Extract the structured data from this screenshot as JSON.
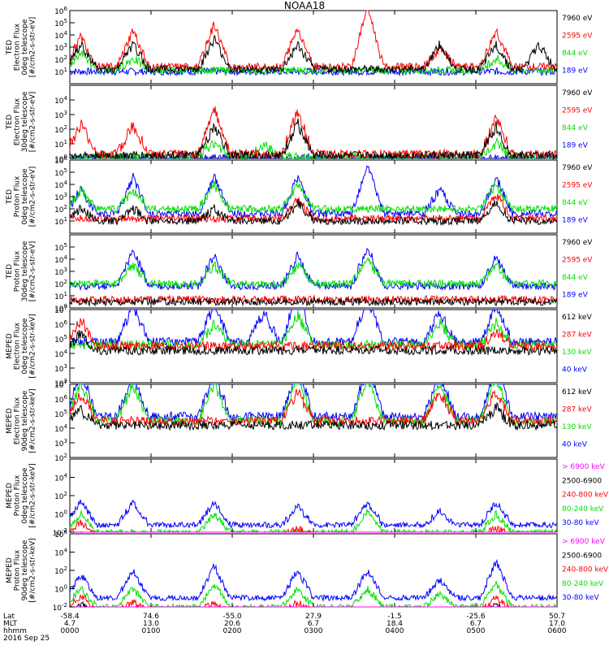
{
  "title": "NOAA18",
  "x_ticks": [
    "0000",
    "0100",
    "0200",
    "0300",
    "0400",
    "0500",
    "0600"
  ],
  "x_axis_rows": [
    {
      "label": "Lat",
      "values": [
        "-58.4",
        "74.6",
        "-55.0",
        "27.9",
        "-1.5",
        "-25.6",
        "50.7"
      ]
    },
    {
      "label": "MLT",
      "values": [
        "4.7",
        "13.0",
        "20.6",
        "6.7",
        "18.4",
        "6.7",
        "17.0"
      ]
    },
    {
      "label": "hhmm",
      "values": [
        "0000",
        "0100",
        "0200",
        "0300",
        "0400",
        "0500",
        "0600"
      ]
    }
  ],
  "date": "2016 Sep 25",
  "colors": {
    "black": "#000000",
    "red": "#ff0000",
    "green": "#00e000",
    "blue": "#0000ff",
    "magenta": "#ff00ff"
  },
  "chart_data": [
    {
      "type": "line",
      "ylabel": [
        "TED",
        "Electron Flux",
        "0deg telescope",
        "[#/cm2-s-str-eV]"
      ],
      "y_tick_exponents": [
        1,
        2,
        3,
        4,
        5,
        6
      ],
      "ylim": [
        1,
        1000000
      ],
      "yscale": "log",
      "series": [
        {
          "name": "7960 eV",
          "color": "black",
          "bursts": [
            [
              5,
              2
            ],
            [
              28,
              2
            ],
            [
              64,
              2.5
            ],
            [
              101,
              2
            ],
            [
              164,
              2
            ],
            [
              189,
              2
            ],
            [
              208,
              2
            ]
          ],
          "base": 1.2
        },
        {
          "name": "2595 eV",
          "color": "red",
          "bursts": [
            [
              5,
              2.5
            ],
            [
              28,
              3
            ],
            [
              64,
              3.5
            ],
            [
              101,
              3.2
            ],
            [
              132,
              5
            ],
            [
              164,
              1.5
            ],
            [
              189,
              3
            ]
          ],
          "base": 1.4
        },
        {
          "name": "844 eV",
          "color": "green",
          "bursts": [
            [
              5,
              1.5
            ],
            [
              28,
              1
            ],
            [
              189,
              1
            ]
          ],
          "base": 1.1
        },
        {
          "name": "189 eV",
          "color": "blue",
          "bursts": [],
          "base": 1.0
        }
      ]
    },
    {
      "type": "line",
      "ylabel": [
        "TED",
        "Electron Flux",
        "30deg telescope",
        "[#/cm2-s-str-eV]"
      ],
      "y_tick_exponents": [
        0,
        1,
        2,
        3,
        4
      ],
      "ylim": [
        1,
        100000
      ],
      "yscale": "log",
      "series": [
        {
          "name": "7960 eV",
          "color": "black",
          "bursts": [
            [
              64,
              2
            ],
            [
              101,
              2.2
            ],
            [
              189,
              2
            ]
          ],
          "base": 0.2
        },
        {
          "name": "2595 eV",
          "color": "red",
          "bursts": [
            [
              5,
              2
            ],
            [
              28,
              2
            ],
            [
              64,
              3.2
            ],
            [
              101,
              3
            ],
            [
              189,
              2.5
            ]
          ],
          "base": 0.3
        },
        {
          "name": "844 eV",
          "color": "green",
          "bursts": [
            [
              64,
              1
            ],
            [
              86,
              0.8
            ],
            [
              189,
              1
            ]
          ],
          "base": 0.1
        },
        {
          "name": "189 eV",
          "color": "blue",
          "bursts": [],
          "base": 0
        }
      ]
    },
    {
      "type": "line",
      "ylabel": [
        "TED",
        "Proton Flux",
        "0deg telescope",
        "[#/cm2-s-str-eV]"
      ],
      "y_tick_exponents": [
        1,
        2,
        3,
        4,
        5,
        6
      ],
      "ylim": [
        1,
        1000000
      ],
      "yscale": "log",
      "series": [
        {
          "name": "7960 eV",
          "color": "black",
          "bursts": [
            [
              5,
              1
            ],
            [
              28,
              1
            ],
            [
              64,
              1
            ],
            [
              101,
              1.5
            ],
            [
              189,
              1.5
            ]
          ],
          "base": 1.0
        },
        {
          "name": "2595 eV",
          "color": "red",
          "bursts": [
            [
              101,
              1.5
            ],
            [
              189,
              2
            ]
          ],
          "base": 1.2
        },
        {
          "name": "844 eV",
          "color": "green",
          "bursts": [
            [
              5,
              1.5
            ],
            [
              28,
              1.5
            ],
            [
              64,
              2
            ],
            [
              101,
              2
            ],
            [
              189,
              2
            ]
          ],
          "base": 2.0
        },
        {
          "name": "189 eV",
          "color": "blue",
          "bursts": [
            [
              5,
              2
            ],
            [
              28,
              3
            ],
            [
              64,
              3
            ],
            [
              101,
              3
            ],
            [
              132,
              4
            ],
            [
              164,
              2
            ],
            [
              189,
              3
            ]
          ],
          "base": 1.6
        }
      ]
    },
    {
      "type": "line",
      "ylabel": [
        "TED",
        "Proton Flux",
        "30deg telescope",
        "[#/cm2-s-str-eV]"
      ],
      "y_tick_exponents": [
        0,
        1,
        2,
        3,
        4,
        5
      ],
      "ylim": [
        1,
        1000000
      ],
      "yscale": "log",
      "series": [
        {
          "name": "7960 eV",
          "color": "black",
          "bursts": [],
          "base": 0.5
        },
        {
          "name": "2595 eV",
          "color": "red",
          "bursts": [],
          "base": 0.7
        },
        {
          "name": "844 eV",
          "color": "green",
          "bursts": [
            [
              28,
              1.5
            ],
            [
              64,
              1.5
            ],
            [
              101,
              1.5
            ],
            [
              132,
              2
            ],
            [
              189,
              1.5
            ]
          ],
          "base": 2.0
        },
        {
          "name": "189 eV",
          "color": "blue",
          "bursts": [
            [
              28,
              3
            ],
            [
              64,
              2.5
            ],
            [
              101,
              2.5
            ],
            [
              132,
              3.2
            ],
            [
              189,
              2.5
            ]
          ],
          "base": 1.8
        }
      ]
    },
    {
      "type": "line",
      "ylabel": [
        "MEPED",
        "Electron Flux",
        "0deg telescope",
        "[#/cm2-s-str-keV]"
      ],
      "y_tick_exponents": [
        2,
        3,
        4,
        5,
        6,
        7
      ],
      "ylim": [
        100,
        10000000
      ],
      "yscale": "log",
      "series": [
        {
          "name": "612 keV",
          "color": "black",
          "bursts": [
            [
              5,
              1.2
            ]
          ],
          "base": 2.2
        },
        {
          "name": "287 keV",
          "color": "red",
          "bursts": [
            [
              5,
              1.8
            ],
            [
              189,
              1
            ]
          ],
          "base": 2.5
        },
        {
          "name": "130 keV",
          "color": "green",
          "bursts": [
            [
              64,
              1.5
            ],
            [
              101,
              2
            ],
            [
              164,
              1.5
            ],
            [
              189,
              1.5
            ]
          ],
          "base": 2.6
        },
        {
          "name": "40 keV",
          "color": "blue",
          "bursts": [
            [
              28,
              2.5
            ],
            [
              64,
              2.5
            ],
            [
              86,
              2
            ],
            [
              101,
              3.5
            ],
            [
              132,
              3
            ],
            [
              164,
              2
            ],
            [
              189,
              2.5
            ]
          ],
          "base": 2.8
        }
      ]
    },
    {
      "type": "line",
      "ylabel": [
        "MEPED",
        "Electron Flux",
        "90deg telescope",
        "[#/cm2-s-str-keV]"
      ],
      "y_tick_exponents": [
        2,
        3,
        4,
        5,
        6,
        7
      ],
      "ylim": [
        100,
        10000000
      ],
      "yscale": "log",
      "series": [
        {
          "name": "612 keV",
          "color": "black",
          "bursts": [
            [
              5,
              1
            ],
            [
              189,
              1.2
            ]
          ],
          "base": 2.2
        },
        {
          "name": "287 keV",
          "color": "red",
          "bursts": [
            [
              5,
              1.8
            ],
            [
              101,
              2
            ],
            [
              164,
              2
            ],
            [
              189,
              2
            ]
          ],
          "base": 2.5
        },
        {
          "name": "130 keV",
          "color": "green",
          "bursts": [
            [
              5,
              2.5
            ],
            [
              28,
              2.5
            ],
            [
              64,
              2.5
            ],
            [
              101,
              3
            ],
            [
              132,
              3
            ],
            [
              164,
              2.5
            ],
            [
              189,
              3
            ]
          ],
          "base": 2.5
        },
        {
          "name": "40 keV",
          "color": "blue",
          "bursts": [
            [
              5,
              3
            ],
            [
              28,
              3
            ],
            [
              64,
              3
            ],
            [
              101,
              3.5
            ],
            [
              132,
              3.5
            ],
            [
              164,
              3
            ],
            [
              189,
              3.5
            ]
          ],
          "base": 2.8
        }
      ]
    },
    {
      "type": "line",
      "ylabel": [
        "MEPED",
        "Proton Flux",
        "0deg telescope",
        "[#/cm2-s-str-keV]"
      ],
      "y_tick_exponents": [
        -2,
        0,
        2,
        4
      ],
      "ylim": [
        0.01,
        1000000
      ],
      "yscale": "log",
      "series": [
        {
          "name": "> 6900 keV",
          "color": "magenta",
          "bursts": [
            [
              189,
              0.6
            ]
          ],
          "base": -2.0
        },
        {
          "name": "2500-6900",
          "color": "black",
          "bursts": [
            [
              5,
              1
            ]
          ],
          "base": -1.2
        },
        {
          "name": "240-800 keV",
          "color": "red",
          "bursts": [
            [
              5,
              1.6
            ],
            [
              101,
              1
            ],
            [
              189,
              1
            ]
          ],
          "base": -0.5
        },
        {
          "name": "80-240 keV",
          "color": "green",
          "bursts": [
            [
              5,
              2
            ],
            [
              64,
              2
            ],
            [
              132,
              2.2
            ],
            [
              189,
              2
            ]
          ],
          "base": 0.0
        },
        {
          "name": "30-80 keV",
          "color": "blue",
          "bursts": [
            [
              5,
              2.5
            ],
            [
              28,
              2.5
            ],
            [
              64,
              2.5
            ],
            [
              101,
              2
            ],
            [
              132,
              2.5
            ],
            [
              164,
              1.5
            ],
            [
              189,
              2.5
            ]
          ],
          "base": 0.8
        }
      ]
    },
    {
      "type": "line",
      "ylabel": [
        "MEPED",
        "Proton Flux",
        "90deg telescope",
        "[#/cm2-s-str-keV]"
      ],
      "y_tick_exponents": [
        -2,
        0,
        2,
        4,
        6
      ],
      "ylim": [
        0.01,
        1000000
      ],
      "yscale": "log",
      "series": [
        {
          "name": "> 6900 keV",
          "color": "magenta",
          "bursts": [
            [
              5,
              0.6
            ],
            [
              189,
              0.6
            ]
          ],
          "base": -2.0
        },
        {
          "name": "2500-6900",
          "color": "black",
          "bursts": [
            [
              5,
              1.5
            ],
            [
              189,
              1.5
            ]
          ],
          "base": -1.2
        },
        {
          "name": "240-800 keV",
          "color": "red",
          "bursts": [
            [
              5,
              1.8
            ],
            [
              28,
              1
            ],
            [
              64,
              1
            ],
            [
              101,
              1
            ],
            [
              189,
              1.5
            ]
          ],
          "base": -0.5
        },
        {
          "name": "80-240 keV",
          "color": "green",
          "bursts": [
            [
              5,
              2
            ],
            [
              28,
              2
            ],
            [
              64,
              2.5
            ],
            [
              101,
              2
            ],
            [
              132,
              2
            ],
            [
              164,
              1.5
            ],
            [
              189,
              2.5
            ]
          ],
          "base": 0.0
        },
        {
          "name": "30-80 keV",
          "color": "blue",
          "bursts": [
            [
              5,
              2.5
            ],
            [
              28,
              3
            ],
            [
              64,
              3.5
            ],
            [
              101,
              3
            ],
            [
              132,
              3
            ],
            [
              164,
              2
            ],
            [
              189,
              4
            ]
          ],
          "base": 1.0
        }
      ]
    }
  ]
}
